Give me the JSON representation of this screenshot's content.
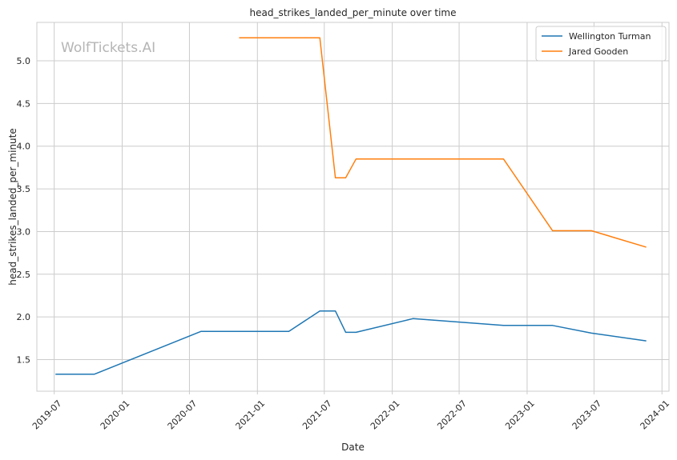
{
  "watermark": "WolfTickets.AI",
  "chart_data": {
    "type": "line",
    "title": "head_strikes_landed_per_minute over time",
    "xlabel": "Date",
    "ylabel": "head_strikes_landed_per_minute",
    "x_ticks": [
      "2019-07",
      "2020-01",
      "2020-07",
      "2021-01",
      "2021-07",
      "2022-01",
      "2022-07",
      "2023-01",
      "2023-07",
      "2024-01"
    ],
    "y_ticks": [
      "1.5",
      "2.0",
      "2.5",
      "3.0",
      "3.5",
      "4.0",
      "4.5",
      "5.0"
    ],
    "xlim": [
      "2019-05-15",
      "2024-01-20"
    ],
    "ylim": [
      1.13,
      5.45
    ],
    "grid": true,
    "legend_position": "top-right",
    "series": [
      {
        "name": "Wellington Turman",
        "color": "#1f77b4",
        "points": [
          {
            "x": "2019-07-06",
            "y": 1.33
          },
          {
            "x": "2019-10-18",
            "y": 1.33
          },
          {
            "x": "2020-08-01",
            "y": 1.83
          },
          {
            "x": "2021-03-27",
            "y": 1.83
          },
          {
            "x": "2021-06-19",
            "y": 2.07
          },
          {
            "x": "2021-07-31",
            "y": 2.07
          },
          {
            "x": "2021-08-28",
            "y": 1.82
          },
          {
            "x": "2021-09-25",
            "y": 1.82
          },
          {
            "x": "2022-02-26",
            "y": 1.98
          },
          {
            "x": "2022-10-29",
            "y": 1.9
          },
          {
            "x": "2023-03-11",
            "y": 1.9
          },
          {
            "x": "2023-06-24",
            "y": 1.81
          },
          {
            "x": "2023-11-18",
            "y": 1.72
          }
        ]
      },
      {
        "name": "Jared Gooden",
        "color": "#ff7f0e",
        "points": [
          {
            "x": "2020-11-14",
            "y": 5.27
          },
          {
            "x": "2021-06-19",
            "y": 5.27
          },
          {
            "x": "2021-07-31",
            "y": 3.63
          },
          {
            "x": "2021-08-28",
            "y": 3.63
          },
          {
            "x": "2021-09-25",
            "y": 3.85
          },
          {
            "x": "2022-10-29",
            "y": 3.85
          },
          {
            "x": "2023-03-11",
            "y": 3.01
          },
          {
            "x": "2023-06-24",
            "y": 3.01
          },
          {
            "x": "2023-11-18",
            "y": 2.82
          }
        ]
      }
    ]
  }
}
